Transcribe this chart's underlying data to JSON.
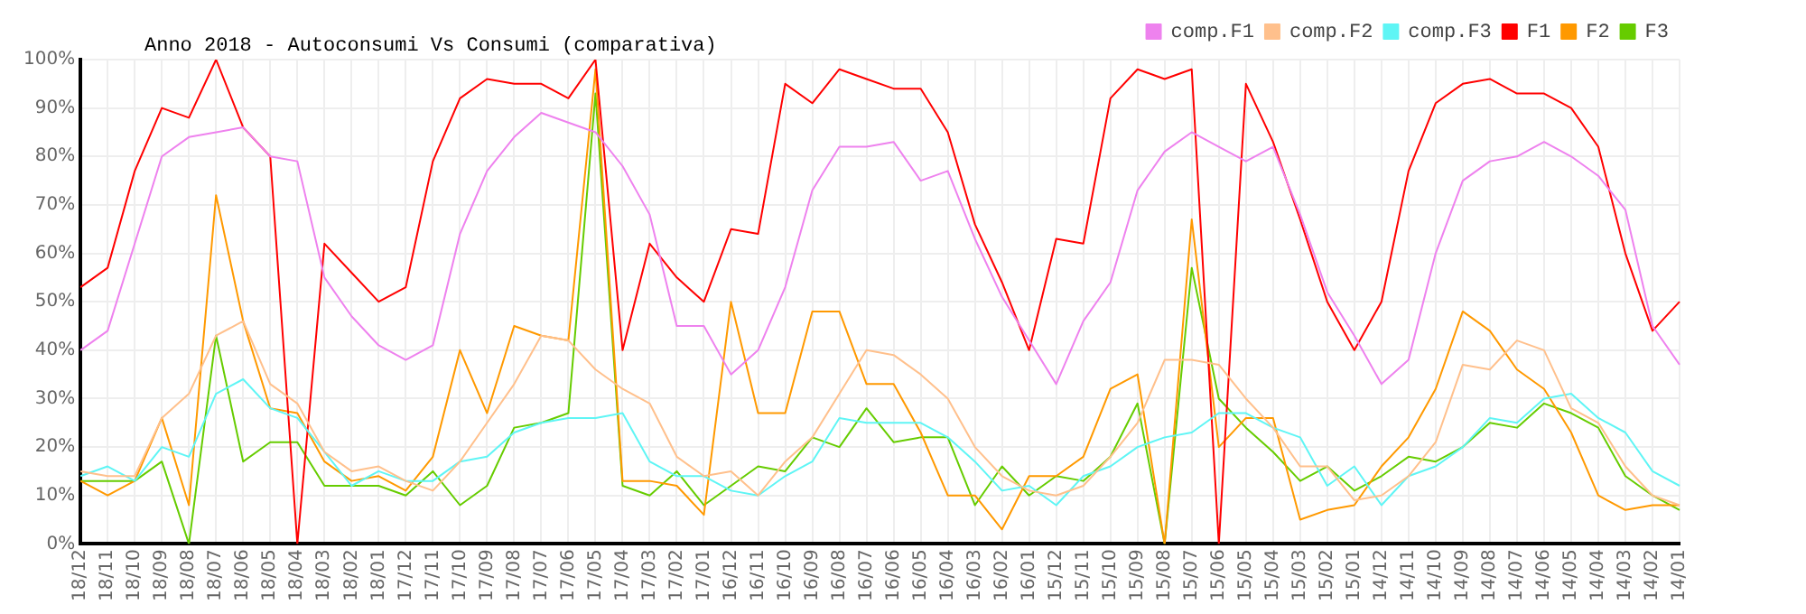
{
  "chart_data": {
    "type": "line",
    "title": "Anno 2018 - Autoconsumi Vs Consumi (comparativa)",
    "categories": [
      "18/12",
      "18/11",
      "18/10",
      "18/09",
      "18/08",
      "18/07",
      "18/06",
      "18/05",
      "18/04",
      "18/03",
      "18/02",
      "18/01",
      "17/12",
      "17/11",
      "17/10",
      "17/09",
      "17/08",
      "17/07",
      "17/06",
      "17/05",
      "17/04",
      "17/03",
      "17/02",
      "17/01",
      "16/12",
      "16/11",
      "16/10",
      "16/09",
      "16/08",
      "16/07",
      "16/06",
      "16/05",
      "16/04",
      "16/03",
      "16/02",
      "16/01",
      "15/12",
      "15/11",
      "15/10",
      "15/09",
      "15/08",
      "15/07",
      "15/06",
      "15/05",
      "15/04",
      "15/03",
      "15/02",
      "15/01",
      "14/12",
      "14/11",
      "14/10",
      "14/09",
      "14/08",
      "14/07",
      "14/06",
      "14/05",
      "14/04",
      "14/03",
      "14/02",
      "14/01"
    ],
    "series": [
      {
        "name": "comp.F1",
        "color": "#ee82ee",
        "values": [
          40,
          44,
          62,
          80,
          84,
          85,
          86,
          80,
          79,
          55,
          47,
          41,
          38,
          41,
          64,
          77,
          84,
          89,
          87,
          85,
          78,
          68,
          45,
          45,
          35,
          40,
          53,
          73,
          82,
          82,
          83,
          75,
          77,
          63,
          51,
          42,
          33,
          46,
          54,
          73,
          81,
          85,
          82,
          79,
          82,
          68,
          52,
          43,
          33,
          38,
          60,
          75,
          79,
          80,
          83,
          80,
          76,
          69,
          45,
          37
        ]
      },
      {
        "name": "comp.F2",
        "color": "#ffc08c",
        "values": [
          15,
          14,
          14,
          26,
          31,
          43,
          46,
          33,
          29,
          19,
          15,
          16,
          13,
          11,
          17,
          25,
          33,
          43,
          42,
          36,
          32,
          29,
          18,
          14,
          15,
          10,
          17,
          22,
          31,
          40,
          39,
          35,
          30,
          20,
          14,
          11,
          10,
          12,
          18,
          25,
          38,
          38,
          37,
          30,
          24,
          16,
          16,
          9,
          10,
          14,
          21,
          37,
          36,
          42,
          40,
          28,
          25,
          16,
          10,
          8
        ]
      },
      {
        "name": "comp.F3",
        "color": "#5ff5f5",
        "values": [
          14,
          16,
          13,
          20,
          18,
          31,
          34,
          28,
          26,
          19,
          12,
          15,
          13,
          13,
          17,
          18,
          23,
          25,
          26,
          26,
          27,
          17,
          14,
          14,
          11,
          10,
          14,
          17,
          26,
          25,
          25,
          25,
          22,
          17,
          11,
          12,
          8,
          14,
          16,
          20,
          22,
          23,
          27,
          27,
          24,
          22,
          12,
          16,
          8,
          14,
          16,
          20,
          26,
          25,
          30,
          31,
          26,
          23,
          15,
          12
        ]
      },
      {
        "name": "F1",
        "color": "#ff0000",
        "values": [
          53,
          57,
          77,
          90,
          88,
          100,
          86,
          80,
          0,
          62,
          56,
          50,
          53,
          79,
          92,
          96,
          95,
          95,
          92,
          100,
          40,
          62,
          55,
          50,
          65,
          64,
          95,
          91,
          98,
          96,
          94,
          94,
          85,
          66,
          54,
          40,
          63,
          62,
          92,
          98,
          96,
          98,
          0,
          95,
          83,
          67,
          50,
          40,
          50,
          77,
          91,
          95,
          96,
          93,
          93,
          90,
          82,
          60,
          44,
          50
        ]
      },
      {
        "name": "F2",
        "color": "#ff9900",
        "values": [
          13,
          10,
          13,
          26,
          8,
          72,
          46,
          28,
          27,
          17,
          13,
          14,
          11,
          18,
          40,
          27,
          45,
          43,
          42,
          98,
          13,
          13,
          12,
          6,
          50,
          27,
          27,
          48,
          48,
          33,
          33,
          23,
          10,
          10,
          3,
          14,
          14,
          18,
          32,
          35,
          0,
          67,
          20,
          26,
          26,
          5,
          7,
          8,
          16,
          22,
          32,
          48,
          44,
          36,
          32,
          23,
          10,
          7,
          8,
          8
        ]
      },
      {
        "name": "F3",
        "color": "#66cc00",
        "values": [
          13,
          13,
          13,
          17,
          0,
          43,
          17,
          21,
          21,
          12,
          12,
          12,
          10,
          15,
          8,
          12,
          24,
          25,
          27,
          93,
          12,
          10,
          15,
          8,
          12,
          16,
          15,
          22,
          20,
          28,
          21,
          22,
          22,
          8,
          16,
          10,
          14,
          13,
          18,
          29,
          0,
          57,
          30,
          24,
          19,
          13,
          16,
          11,
          14,
          18,
          17,
          20,
          25,
          24,
          29,
          27,
          24,
          14,
          10,
          7
        ]
      }
    ],
    "ylim": [
      0,
      100
    ],
    "yticks": [
      {
        "value": 0,
        "label": "0%"
      },
      {
        "value": 10,
        "label": "10%"
      },
      {
        "value": 20,
        "label": "20%"
      },
      {
        "value": 30,
        "label": "30%"
      },
      {
        "value": 40,
        "label": "40%"
      },
      {
        "value": 50,
        "label": "50%"
      },
      {
        "value": 60,
        "label": "60%"
      },
      {
        "value": 70,
        "label": "70%"
      },
      {
        "value": 80,
        "label": "80%"
      },
      {
        "value": 90,
        "label": "90%"
      },
      {
        "value": 100,
        "label": "100%"
      }
    ],
    "grid": true,
    "legend": "top right",
    "marker": "none",
    "line_style": "solid"
  }
}
